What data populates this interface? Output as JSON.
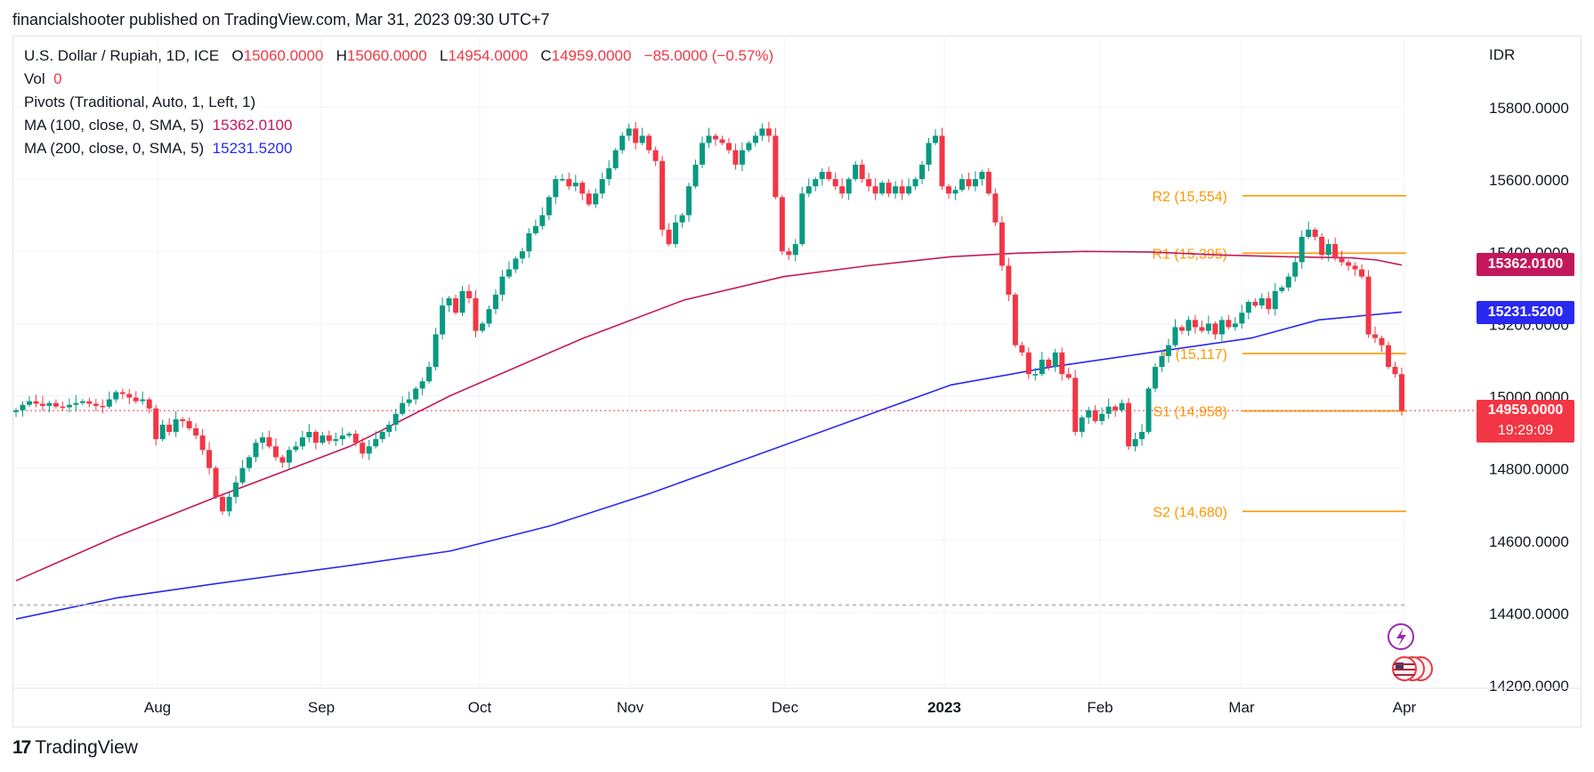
{
  "header": {
    "publisher_line": "financialshooter published on TradingView.com, Mar 31, 2023 09:30 UTC+7"
  },
  "legend": {
    "symbol": "U.S. Dollar / Rupiah, 1D, ICE",
    "o_label": "O",
    "o_value": "15060.0000",
    "h_label": "H",
    "h_value": "15060.0000",
    "l_label": "L",
    "l_value": "14954.0000",
    "c_label": "C",
    "c_value": "14959.0000",
    "change": "−85.0000 (−0.57%)",
    "vol_label": "Vol",
    "vol_value": "0",
    "pivots_label": "Pivots (Traditional, Auto, 1, Left, 1)",
    "ma100_label": "MA (100, close, 0, SMA, 5)",
    "ma100_value": "15362.0100",
    "ma200_label": "MA (200, close, 0, SMA, 5)",
    "ma200_value": "15231.5200"
  },
  "axis": {
    "currency": "IDR",
    "y_ticks": [
      "15800.0000",
      "15600.0000",
      "15400.0000",
      "15200.0000",
      "15000.0000",
      "14800.0000",
      "14600.0000",
      "14400.0000",
      "14200.0000"
    ],
    "x_ticks": [
      "Aug",
      "Sep",
      "Oct",
      "Nov",
      "Dec",
      "2023",
      "Feb",
      "Mar",
      "Apr"
    ]
  },
  "badges": {
    "ma100": "15362.0100",
    "ma200": "15231.5200",
    "last_price": "14959.0000",
    "countdown": "19:29:09"
  },
  "footer": {
    "brand": "TradingView"
  },
  "colors": {
    "up": "#089981",
    "down": "#f23645",
    "ma100": "#c2185b",
    "ma200": "#2929f0",
    "pivot": "#ff9800"
  },
  "chart_data": {
    "type": "candlestick",
    "title": "U.S. Dollar / Rupiah, 1D, ICE",
    "ylabel": "IDR",
    "ylim": [
      14200,
      15900
    ],
    "x_start": "2023-07-05",
    "x_end": "2023-04-07",
    "pivots": [
      {
        "label": "R2 (15,554)",
        "value": 15554
      },
      {
        "label": "R1 (15,395)",
        "value": 15395
      },
      {
        "label": "P (15,117)",
        "value": 15117
      },
      {
        "label": "S1 (14,958)",
        "value": 14958
      },
      {
        "label": "S2 (14,680)",
        "value": 14680
      }
    ],
    "closes": [
      14960,
      14975,
      14985,
      14978,
      14972,
      14980,
      14970,
      14968,
      14975,
      14980,
      14985,
      14978,
      14972,
      14970,
      14990,
      15010,
      15005,
      14995,
      14985,
      14990,
      14965,
      14880,
      14920,
      14900,
      14935,
      14930,
      14910,
      14890,
      14850,
      14800,
      14720,
      14680,
      14720,
      14760,
      14800,
      14830,
      14870,
      14885,
      14860,
      14830,
      14815,
      14850,
      14860,
      14885,
      14900,
      14870,
      14890,
      14875,
      14880,
      14890,
      14895,
      14870,
      14840,
      14860,
      14880,
      14900,
      14920,
      14950,
      14980,
      14990,
      15020,
      15040,
      15080,
      15170,
      15250,
      15270,
      15230,
      15290,
      15270,
      15180,
      15200,
      15240,
      15280,
      15330,
      15350,
      15380,
      15400,
      15450,
      15470,
      15500,
      15550,
      15600,
      15600,
      15580,
      15590,
      15560,
      15530,
      15560,
      15600,
      15630,
      15680,
      15720,
      15740,
      15700,
      15720,
      15680,
      15650,
      15460,
      15420,
      15480,
      15500,
      15580,
      15640,
      15700,
      15720,
      15710,
      15700,
      15680,
      15640,
      15680,
      15700,
      15720,
      15740,
      15720,
      15550,
      15400,
      15390,
      15420,
      15560,
      15580,
      15600,
      15620,
      15600,
      15580,
      15560,
      15600,
      15640,
      15600,
      15580,
      15560,
      15590,
      15560,
      15580,
      15560,
      15580,
      15600,
      15640,
      15700,
      15720,
      15580,
      15560,
      15570,
      15600,
      15580,
      15600,
      15620,
      15560,
      15480,
      15360,
      15280,
      15140,
      15120,
      15060,
      15060,
      15100,
      15080,
      15120,
      15060,
      15050,
      14900,
      14940,
      14960,
      14930,
      14950,
      14970,
      14960,
      14980,
      14860,
      14880,
      14900,
      15020,
      15080,
      15110,
      15140,
      15190,
      15180,
      15210,
      15190,
      15180,
      15200,
      15170,
      15210,
      15190,
      15200,
      15230,
      15260,
      15250,
      15270,
      15240,
      15290,
      15300,
      15330,
      15370,
      15440,
      15460,
      15440,
      15390,
      15420,
      15380,
      15370,
      15360,
      15350,
      15330,
      15170,
      15160,
      15140,
      15080,
      15060,
      14959
    ],
    "ma100": [
      [
        0,
        14488
      ],
      [
        60,
        14610
      ],
      [
        120,
        14720
      ],
      [
        200,
        14860
      ],
      [
        260,
        15000
      ],
      [
        340,
        15160
      ],
      [
        400,
        15265
      ],
      [
        460,
        15330
      ],
      [
        510,
        15360
      ],
      [
        560,
        15385
      ],
      [
        600,
        15395
      ],
      [
        640,
        15400
      ],
      [
        680,
        15398
      ],
      [
        720,
        15390
      ],
      [
        760,
        15385
      ],
      [
        800,
        15382
      ],
      [
        815,
        15376
      ],
      [
        830,
        15362
      ]
    ],
    "ma200": [
      [
        0,
        14382
      ],
      [
        60,
        14440
      ],
      [
        120,
        14480
      ],
      [
        200,
        14530
      ],
      [
        260,
        14570
      ],
      [
        320,
        14640
      ],
      [
        380,
        14730
      ],
      [
        440,
        14830
      ],
      [
        500,
        14930
      ],
      [
        560,
        15030
      ],
      [
        620,
        15080
      ],
      [
        680,
        15120
      ],
      [
        740,
        15160
      ],
      [
        780,
        15210
      ],
      [
        830,
        15232
      ]
    ]
  }
}
